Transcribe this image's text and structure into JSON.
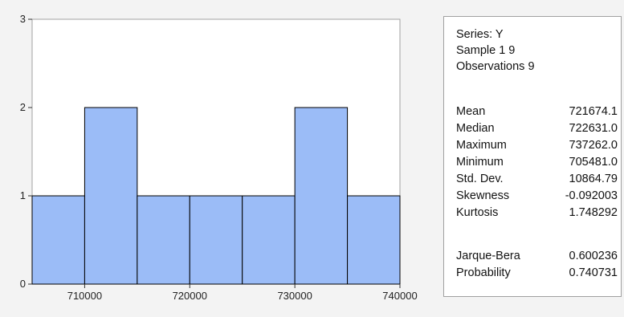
{
  "chart_data": {
    "type": "bar",
    "bins": [
      {
        "from": 705000,
        "to": 710000,
        "count": 1
      },
      {
        "from": 710000,
        "to": 715000,
        "count": 2
      },
      {
        "from": 715000,
        "to": 720000,
        "count": 1
      },
      {
        "from": 720000,
        "to": 725000,
        "count": 1
      },
      {
        "from": 725000,
        "to": 730000,
        "count": 1
      },
      {
        "from": 730000,
        "to": 735000,
        "count": 2
      },
      {
        "from": 735000,
        "to": 740000,
        "count": 1
      }
    ],
    "x_ticks": [
      "710000",
      "720000",
      "730000",
      "740000"
    ],
    "y_ticks": [
      "0",
      "1",
      "2",
      "3"
    ],
    "xlim": [
      705000,
      740000
    ],
    "ylim": [
      0,
      3
    ],
    "bar_color": "#9bbcf7",
    "grid": false
  },
  "stats": {
    "series": "Series: Y",
    "sample": "Sample 1 9",
    "observations": "Observations 9",
    "rows": [
      {
        "label": "Mean",
        "value": "721674.1"
      },
      {
        "label": "Median",
        "value": "722631.0"
      },
      {
        "label": "Maximum",
        "value": "737262.0"
      },
      {
        "label": "Minimum",
        "value": "705481.0"
      },
      {
        "label": "Std. Dev.",
        "value": "10864.79"
      },
      {
        "label": "Skewness",
        "value": "-0.092003"
      },
      {
        "label": "Kurtosis",
        "value": "1.748292"
      }
    ],
    "tests": [
      {
        "label": "Jarque-Bera",
        "value": "0.600236"
      },
      {
        "label": "Probability",
        "value": "0.740731"
      }
    ]
  }
}
